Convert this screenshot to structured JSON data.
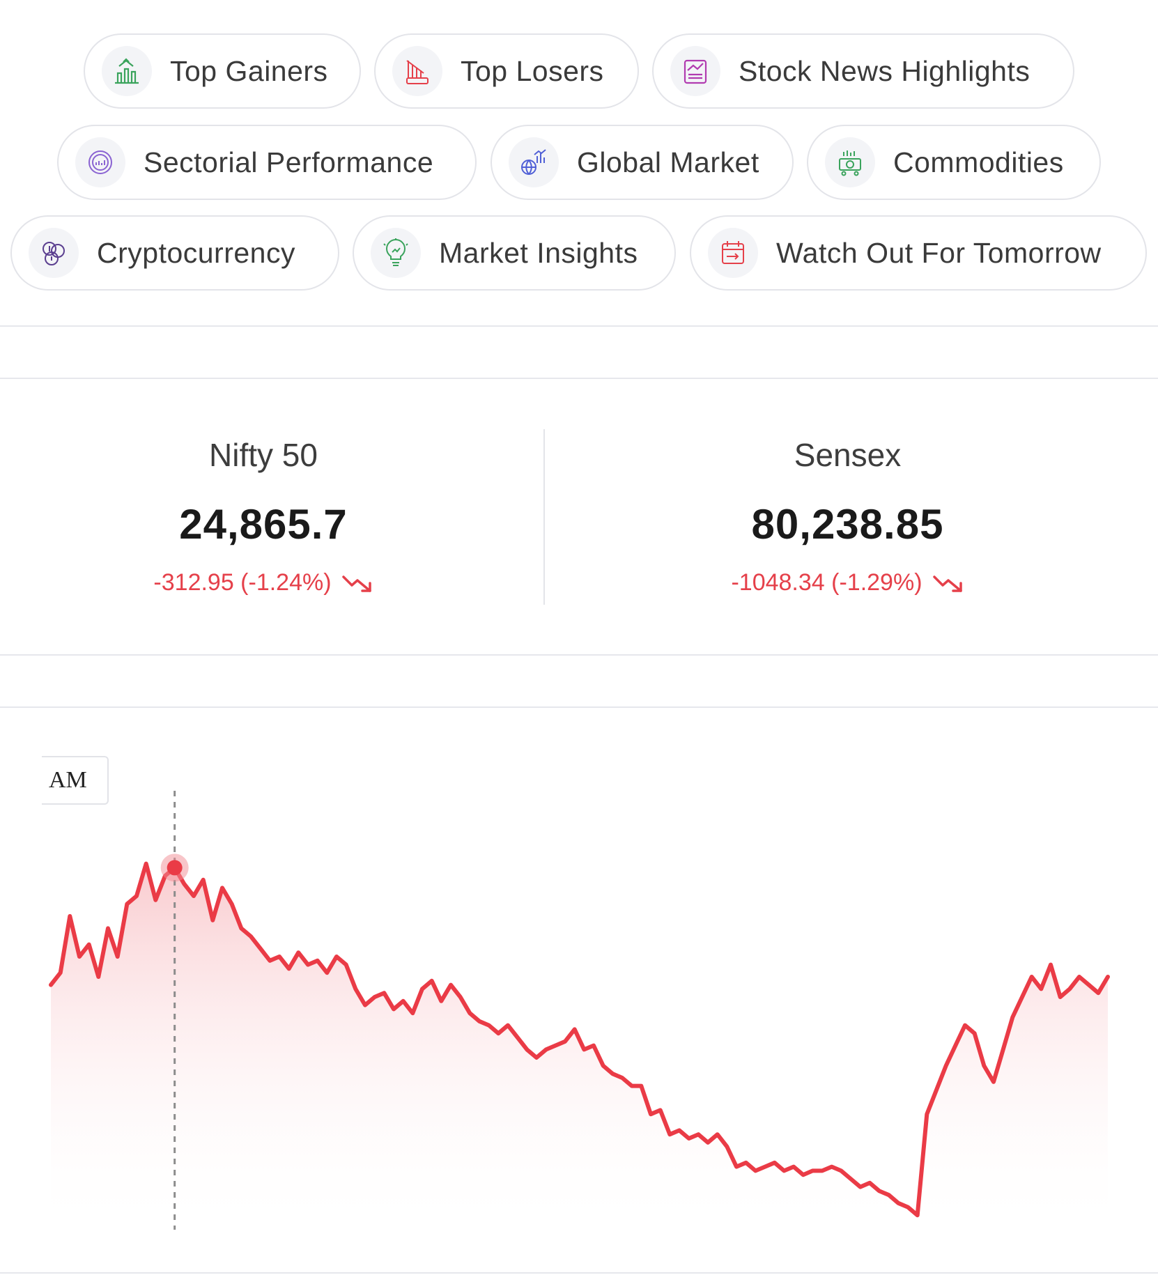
{
  "nav": {
    "top_gainers": {
      "label": "Top Gainers",
      "icon": "gainers-bars-icon",
      "color": "#3aa35c"
    },
    "top_losers": {
      "label": "Top Losers",
      "icon": "loss-chart-icon",
      "color": "#e5404a"
    },
    "stock_news": {
      "label": "Stock News Highlights",
      "icon": "news-chart-icon",
      "color": "#b13bb0"
    },
    "sectorial": {
      "label": "Sectorial Performance",
      "icon": "sector-target-icon",
      "color": "#8a63d2"
    },
    "global_market": {
      "label": "Global Market",
      "icon": "globe-chart-icon",
      "color": "#4f5fd6"
    },
    "commodities": {
      "label": "Commodities",
      "icon": "money-cart-icon",
      "color": "#3aa35c"
    },
    "crypto": {
      "label": "Cryptocurrency",
      "icon": "crypto-coins-icon",
      "color": "#5a3e8f"
    },
    "insights": {
      "label": "Market Insights",
      "icon": "bulb-chart-icon",
      "color": "#3aa35c"
    },
    "tomorrow": {
      "label": "Watch Out For Tomorrow",
      "icon": "calendar-arrow-icon",
      "color": "#e5404a"
    }
  },
  "indices": [
    {
      "name": "Nifty 50",
      "value": "24,865.7",
      "change": "-312.95 (-1.24%)",
      "trend": "down"
    },
    {
      "name": "Sensex",
      "value": "80,238.85",
      "change": "-1048.34 (-1.29%)",
      "trend": "down"
    }
  ],
  "colors": {
    "down": "#e5404a",
    "line": "#ea3b46"
  },
  "tooltip": {
    "text": "AM"
  },
  "chart_data": {
    "type": "area",
    "title": "",
    "xlabel": "",
    "ylabel": "",
    "grid": false,
    "ylim": [
      0,
      100
    ],
    "note_y": "y values are relative levels read from the unlabeled chart",
    "highlight_index": 13,
    "values": [
      58,
      61,
      75,
      65,
      68,
      60,
      72,
      65,
      78,
      80,
      88,
      79,
      85,
      87,
      83,
      80,
      84,
      74,
      82,
      78,
      72,
      70,
      67,
      64,
      65,
      62,
      66,
      63,
      64,
      61,
      65,
      63,
      57,
      53,
      55,
      56,
      52,
      54,
      51,
      57,
      59,
      54,
      58,
      55,
      51,
      49,
      48,
      46,
      48,
      45,
      42,
      40,
      42,
      43,
      44,
      47,
      42,
      43,
      38,
      36,
      35,
      33,
      33,
      26,
      27,
      21,
      22,
      20,
      21,
      19,
      21,
      18,
      13,
      14,
      12,
      13,
      14,
      12,
      13,
      11,
      12,
      12,
      13,
      12,
      10,
      8,
      9,
      7,
      6,
      4,
      3,
      1,
      26,
      32,
      38,
      43,
      48,
      46,
      38,
      34,
      42,
      50,
      55,
      60,
      57,
      63,
      55,
      57,
      60,
      58,
      56,
      60
    ]
  }
}
